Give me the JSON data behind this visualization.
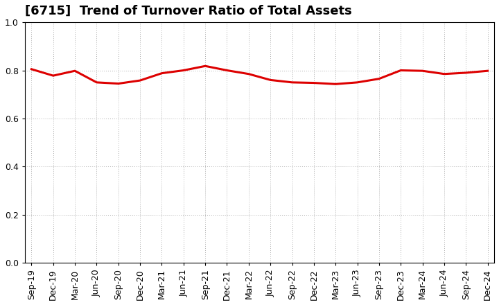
{
  "title": "[6715]  Trend of Turnover Ratio of Total Assets",
  "labels": [
    "Sep-19",
    "Dec-19",
    "Mar-20",
    "Jun-20",
    "Sep-20",
    "Dec-20",
    "Mar-21",
    "Jun-21",
    "Sep-21",
    "Dec-21",
    "Mar-22",
    "Jun-22",
    "Sep-22",
    "Dec-22",
    "Mar-23",
    "Jun-23",
    "Sep-23",
    "Dec-23",
    "Mar-24",
    "Jun-24",
    "Sep-24",
    "Dec-24"
  ],
  "values": [
    0.805,
    0.778,
    0.798,
    0.75,
    0.745,
    0.758,
    0.788,
    0.8,
    0.818,
    0.8,
    0.785,
    0.76,
    0.75,
    0.748,
    0.743,
    0.75,
    0.765,
    0.8,
    0.798,
    0.785,
    0.79,
    0.798
  ],
  "line_color": "#dd0000",
  "line_width": 2.2,
  "ylim": [
    0.0,
    1.0
  ],
  "yticks": [
    0.0,
    0.2,
    0.4,
    0.6,
    0.8,
    1.0
  ],
  "background_color": "#ffffff",
  "grid_color": "#999999",
  "title_fontsize": 13,
  "tick_fontsize": 9
}
